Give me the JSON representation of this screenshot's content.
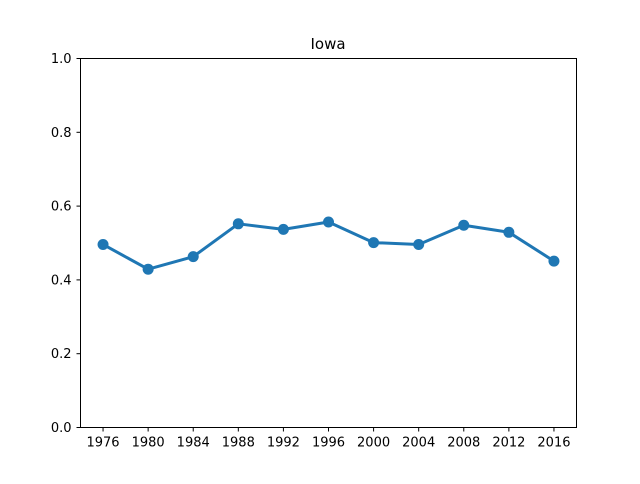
{
  "chart_data": {
    "type": "line",
    "title": "Iowa",
    "xlabel": "",
    "ylabel": "",
    "categories": [
      "1976",
      "1980",
      "1984",
      "1988",
      "1992",
      "1996",
      "2000",
      "2004",
      "2008",
      "2012",
      "2016"
    ],
    "series": [
      {
        "values": [
          0.496,
          0.429,
          0.463,
          0.552,
          0.537,
          0.557,
          0.501,
          0.496,
          0.548,
          0.529,
          0.451
        ],
        "color": "#1f77b4",
        "marker": "circle"
      }
    ],
    "ylim": [
      0.0,
      1.0
    ],
    "yticks": [
      "0.0",
      "0.2",
      "0.4",
      "0.6",
      "0.8",
      "1.0"
    ],
    "grid": false,
    "legend": "none"
  }
}
